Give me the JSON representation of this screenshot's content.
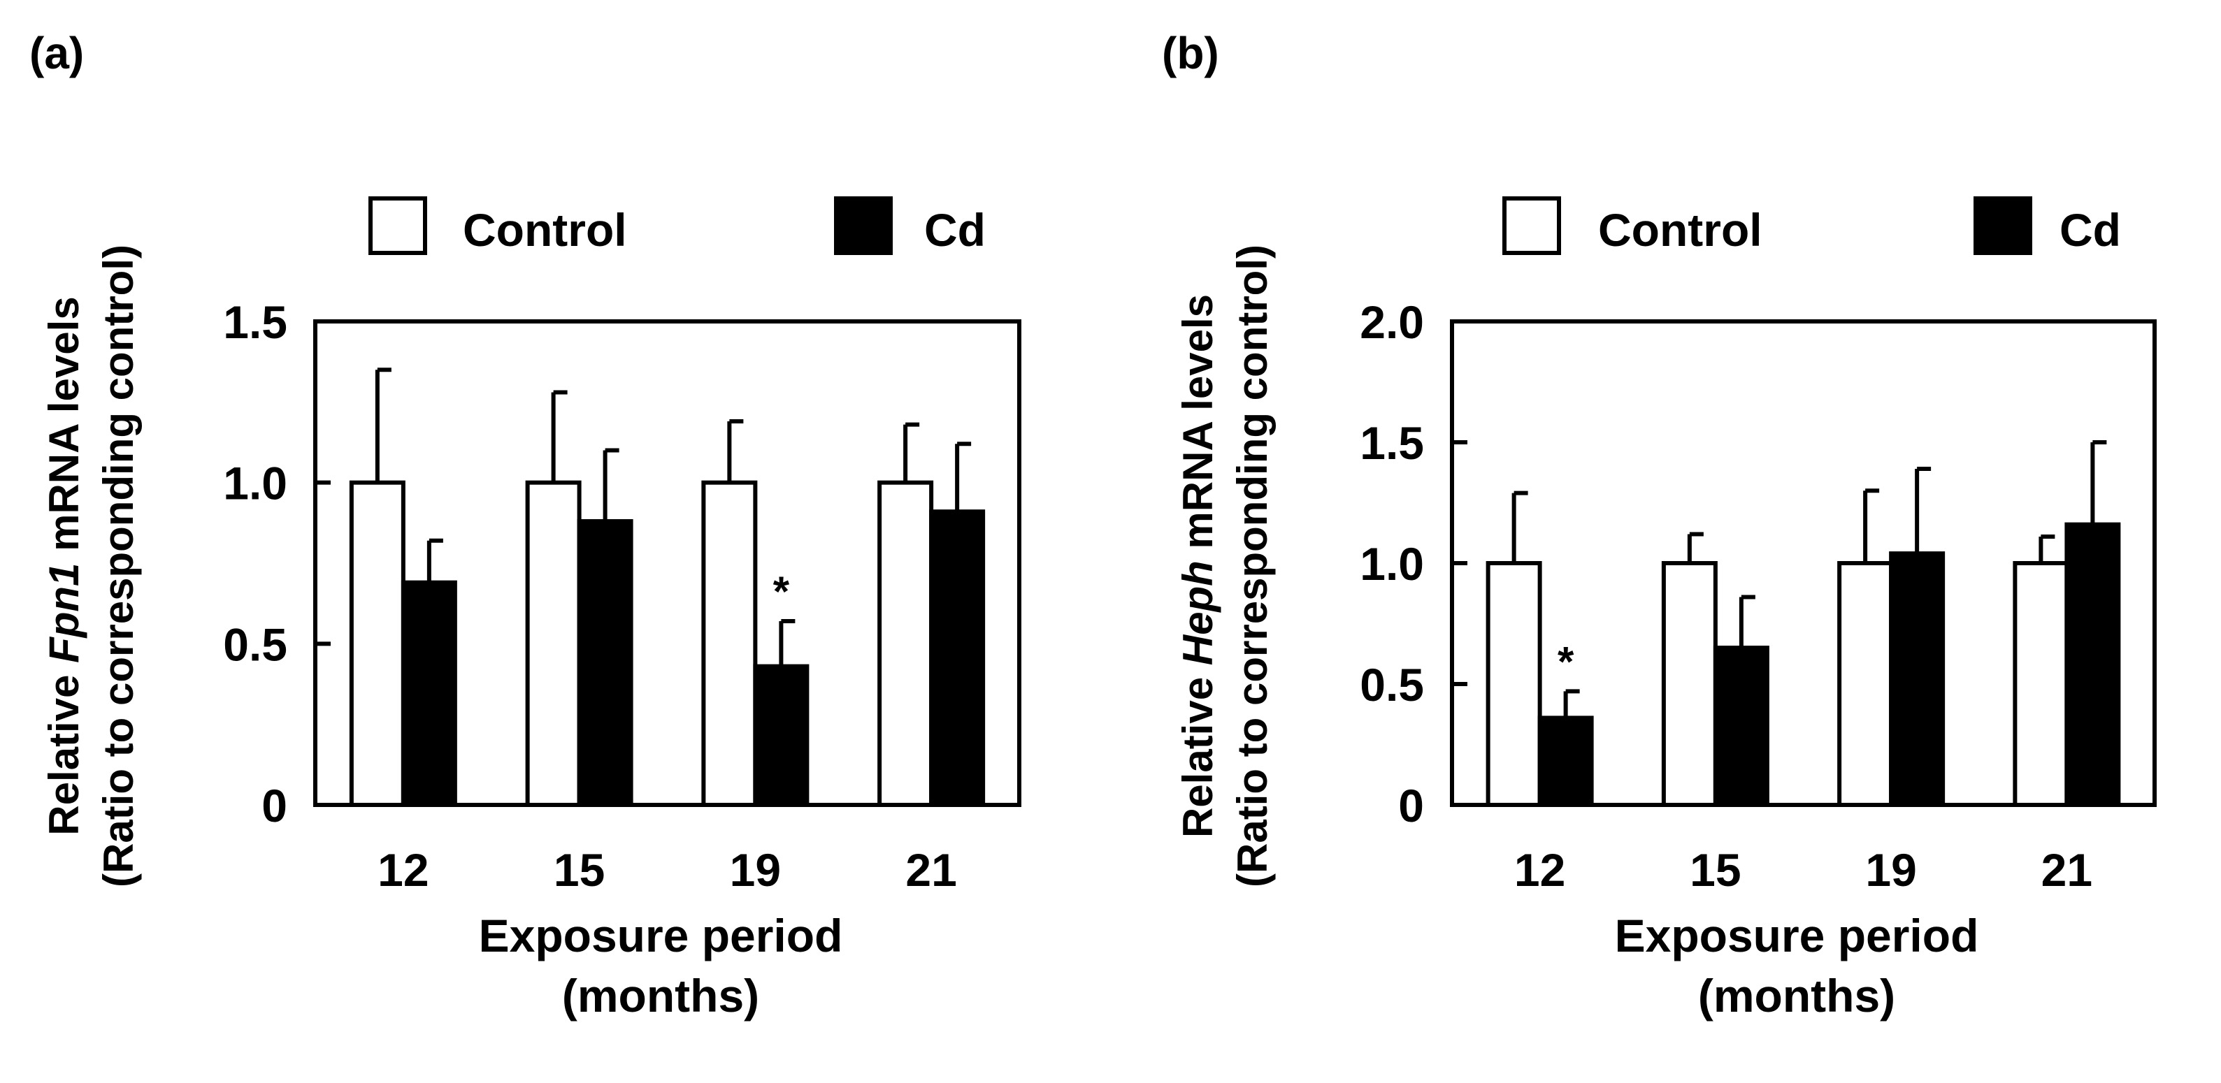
{
  "chart_data": [
    {
      "type": "bar",
      "panel_label": "(a)",
      "legend": {
        "position": "top",
        "entries": [
          "Control",
          "Cd"
        ]
      },
      "series_colors": {
        "Control": "#ffffff",
        "Cd": "#000000"
      },
      "categories": [
        "12",
        "15",
        "19",
        "21"
      ],
      "series": [
        {
          "name": "Control",
          "values": [
            1.0,
            1.0,
            1.0,
            1.0
          ],
          "errors": [
            0.35,
            0.28,
            0.19,
            0.18
          ]
        },
        {
          "name": "Cd",
          "values": [
            0.69,
            0.88,
            0.43,
            0.91
          ],
          "errors": [
            0.13,
            0.22,
            0.14,
            0.21
          ]
        }
      ],
      "significance": [
        {
          "series": "Cd",
          "category": "19",
          "mark": "*"
        }
      ],
      "ylim": [
        0,
        1.5
      ],
      "yticks": [
        0,
        0.5,
        1.0,
        1.5
      ],
      "ytick_labels": [
        "0",
        "0.5",
        "1.0",
        "1.5"
      ],
      "ylabel_prefix": "Relative ",
      "ylabel_gene": "Fpn1",
      "ylabel_suffix": " mRNA levels",
      "ylabel_line2": "(Ratio to corresponding control)",
      "xlabel_line1": "Exposure period",
      "xlabel_line2": "(months)"
    },
    {
      "type": "bar",
      "panel_label": "(b)",
      "legend": {
        "position": "top",
        "entries": [
          "Control",
          "Cd"
        ]
      },
      "series_colors": {
        "Control": "#ffffff",
        "Cd": "#000000"
      },
      "categories": [
        "12",
        "15",
        "19",
        "21"
      ],
      "series": [
        {
          "name": "Control",
          "values": [
            1.0,
            1.0,
            1.0,
            1.0
          ],
          "errors": [
            0.29,
            0.12,
            0.3,
            0.11
          ]
        },
        {
          "name": "Cd",
          "values": [
            0.36,
            0.65,
            1.04,
            1.16
          ],
          "errors": [
            0.11,
            0.21,
            0.35,
            0.34
          ]
        }
      ],
      "significance": [
        {
          "series": "Cd",
          "category": "12",
          "mark": "*"
        }
      ],
      "ylim": [
        0,
        2.0
      ],
      "yticks": [
        0,
        0.5,
        1.0,
        1.5,
        2.0
      ],
      "ytick_labels": [
        "0",
        "0.5",
        "1.0",
        "1.5",
        "2.0"
      ],
      "ylabel_prefix": "Relative ",
      "ylabel_gene": "Heph",
      "ylabel_suffix": " mRNA levels",
      "ylabel_line2": "(Ratio to corresponding control)",
      "xlabel_line1": "Exposure period",
      "xlabel_line2": "(months)"
    }
  ]
}
